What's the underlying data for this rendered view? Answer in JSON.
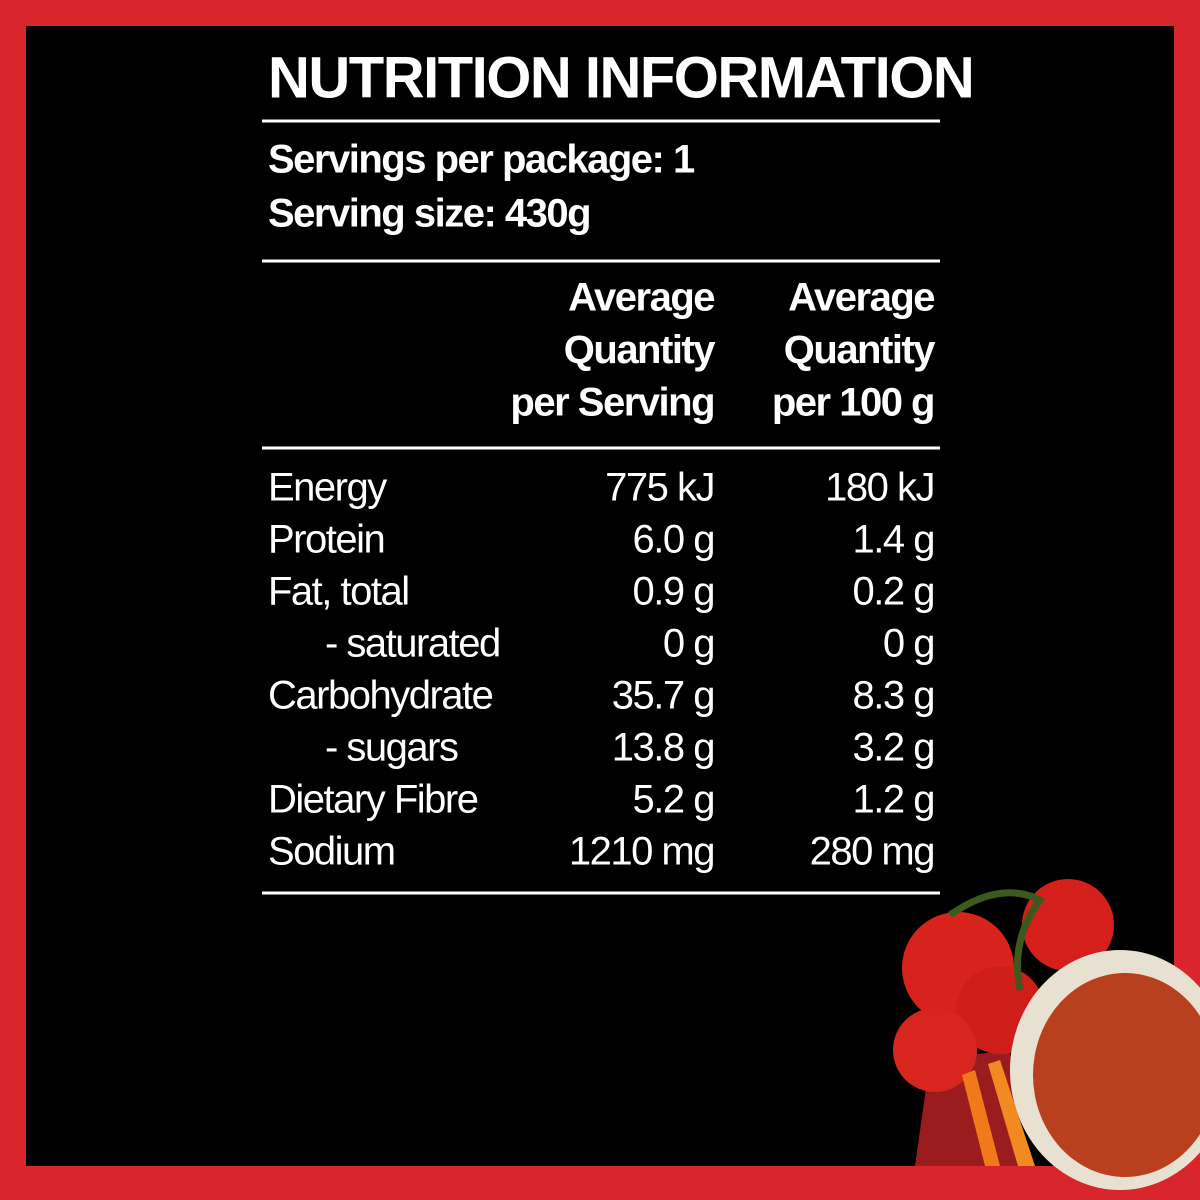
{
  "header": {
    "title": "NUTRITION INFORMATION",
    "servings_per_package": "Servings per package: 1",
    "serving_size": "Serving size: 430g"
  },
  "table": {
    "columns": [
      [
        "Average",
        "Quantity",
        "per Serving"
      ],
      [
        "Average",
        "Quantity",
        "per 100 g"
      ]
    ],
    "rows": [
      [
        "Energy",
        "775 kJ",
        "180 kJ"
      ],
      [
        "Protein",
        "6.0 g",
        "1.4 g"
      ],
      [
        "Fat, total",
        "0.9 g",
        "0.2 g"
      ],
      [
        "- saturated",
        "0 g",
        "0 g"
      ],
      [
        "Carbohydrate",
        "35.7 g",
        "8.3 g"
      ],
      [
        "- sugars",
        "13.8 g",
        "3.2 g"
      ],
      [
        "Dietary Fibre",
        "5.2 g",
        "1.2 g"
      ],
      [
        "Sodium",
        "1210 mg",
        "280 mg"
      ]
    ]
  }
}
